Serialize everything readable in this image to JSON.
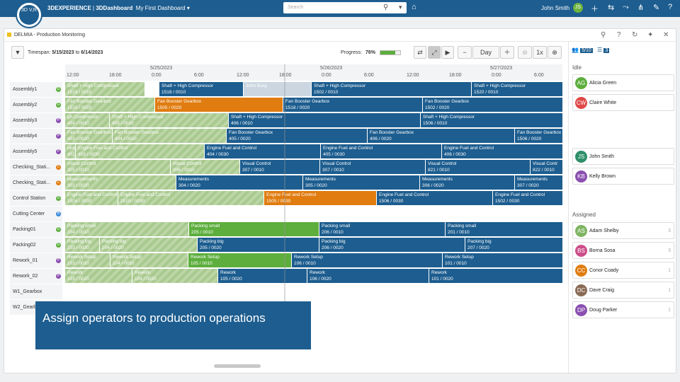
{
  "app": {
    "platform": "3DEXPERIENCE",
    "dashboard_label": "3DDashboard",
    "dashboard": "My First Dashboard",
    "search_placeholder": "Search",
    "user": "John Smith",
    "user_badge": "JS",
    "logo_text": "3D V,R"
  },
  "widget": {
    "title": "DELMIA - Production Monitoring",
    "timespan_label": "Timespan:",
    "from": "5/15/2023",
    "to_label": "to",
    "to": "6/14/2023",
    "progress_label": "Progress:",
    "progress_value": "76%",
    "progress_fraction": 0.76,
    "zoom_unit": "Day",
    "speed": "1x"
  },
  "axis": {
    "dates": [
      "5/25/2023",
      "5/26/2023",
      "5/27/2023"
    ],
    "hours": [
      "12:00",
      "18:00",
      "0:00",
      "6:00",
      "12:00",
      "18:00",
      "0:00",
      "6:00",
      "12:00",
      "18:00",
      "0:00",
      "6:00"
    ]
  },
  "rows": [
    {
      "name": "Assembly1",
      "badge": "G",
      "color": "#5dae3d"
    },
    {
      "name": "Assembly2",
      "badge": "G",
      "color": "#5dae3d"
    },
    {
      "name": "Assembly3",
      "badge": "P",
      "color": "#8a4fb0"
    },
    {
      "name": "Assembly4",
      "badge": "P",
      "color": "#8a4fb0"
    },
    {
      "name": "Assembly5",
      "badge": "P",
      "color": "#8a4fb0"
    },
    {
      "name": "Checking_Stati...",
      "badge": "C",
      "color": "#e07c10"
    },
    {
      "name": "Checking_Stati...",
      "badge": "C",
      "color": "#e07c10"
    },
    {
      "name": "Control Station",
      "badge": "G",
      "color": "#5dae3d"
    },
    {
      "name": "Cutting Center",
      "badge": "B",
      "color": "#3b8ad8"
    },
    {
      "name": "Packing01",
      "badge": "G",
      "color": "#5dae3d"
    },
    {
      "name": "Packing02",
      "badge": "G",
      "color": "#5dae3d"
    },
    {
      "name": "Rework_01",
      "badge": "P",
      "color": "#8a4fb0"
    },
    {
      "name": "Rework_02",
      "badge": "P",
      "color": "#8a4fb0"
    },
    {
      "name": "W1_Gearbox",
      "badge": "",
      "color": ""
    },
    {
      "name": "W2_Gearbox",
      "badge": "",
      "color": ""
    }
  ],
  "bars": [
    {
      "row": 0,
      "x": 0,
      "w": 112,
      "c": "done",
      "t": "Shaft + High Compressor",
      "n": "1519 / 0010"
    },
    {
      "row": 0,
      "x": 133,
      "w": 118,
      "c": "blue",
      "t": "Shaft + High Compressor",
      "n": "1518 / 0010"
    },
    {
      "row": 0,
      "x": 252,
      "w": 95,
      "c": "ghostbar",
      "t": "John Burg",
      "n": ""
    },
    {
      "row": 0,
      "x": 348,
      "w": 225,
      "c": "blue",
      "t": "Shaft + High Compressor",
      "n": "1502 / 0010"
    },
    {
      "row": 0,
      "x": 574,
      "w": 130,
      "c": "blue",
      "t": "Shaft + High Compressor",
      "n": "1520 / 0010"
    },
    {
      "row": 1,
      "x": 0,
      "w": 126,
      "c": "done",
      "t": "Fan Booster Gearbox",
      "n": "1519 / 0020"
    },
    {
      "row": 1,
      "x": 127,
      "w": 180,
      "c": "orange",
      "t": "Fan Booster Gearbox",
      "n": "1505 / 0020"
    },
    {
      "row": 1,
      "x": 308,
      "w": 196,
      "c": "blue",
      "t": "Fan Booster Gearbox",
      "n": "1518 / 0020"
    },
    {
      "row": 1,
      "x": 505,
      "w": 199,
      "c": "blue",
      "t": "Fan Booster Gearbox",
      "n": "1502 / 0020"
    },
    {
      "row": 2,
      "x": 0,
      "w": 62,
      "c": "done",
      "t": "gh Compressor",
      "n": "404 / 0010"
    },
    {
      "row": 2,
      "x": 63,
      "w": 167,
      "c": "done",
      "t": "Shaft + High Compressor",
      "n": "405 / 0010"
    },
    {
      "row": 2,
      "x": 231,
      "w": 270,
      "c": "blue",
      "t": "Shaft + High Compressor",
      "n": "406 / 0010"
    },
    {
      "row": 2,
      "x": 502,
      "w": 202,
      "c": "blue",
      "t": "Shaft + High Compressor",
      "n": "1506 / 0010"
    },
    {
      "row": 3,
      "x": 0,
      "w": 66,
      "c": "done",
      "t": "Fan Booster Gearbox",
      "n": "403 / 0020"
    },
    {
      "row": 3,
      "x": 67,
      "w": 160,
      "c": "done",
      "t": "Fan Booster Gearbox",
      "n": "404 / 0020"
    },
    {
      "row": 3,
      "x": 228,
      "w": 198,
      "c": "blue",
      "t": "Fan Booster Gearbox",
      "n": "405 / 0020"
    },
    {
      "row": 3,
      "x": 427,
      "w": 207,
      "c": "blue",
      "t": "Fan Booster Gearbox",
      "n": "406 / 0020"
    },
    {
      "row": 3,
      "x": 635,
      "w": 69,
      "c": "blue",
      "t": "Fan Booster Gearbox",
      "n": "1506 / 0020"
    },
    {
      "row": 4,
      "x": 0,
      "w": 14,
      "c": "done",
      "t": "Mot",
      "n": "402 / 0030"
    },
    {
      "row": 4,
      "x": 15,
      "w": 181,
      "c": "done",
      "t": "Engine Fuel and Control",
      "n": "403 / 0030"
    },
    {
      "row": 4,
      "x": 197,
      "w": 163,
      "c": "blue",
      "t": "Engine Fuel and Control",
      "n": "404 / 0030"
    },
    {
      "row": 4,
      "x": 361,
      "w": 170,
      "c": "blue",
      "t": "Engine Fuel and Control",
      "n": "405 / 0030"
    },
    {
      "row": 4,
      "x": 532,
      "w": 172,
      "c": "blue",
      "t": "Engine Fuel and Control",
      "n": "406 / 0030"
    },
    {
      "row": 5,
      "x": 0,
      "w": 148,
      "c": "done",
      "t": "Visual Control",
      "n": "305 / 0010"
    },
    {
      "row": 5,
      "x": 149,
      "w": 97,
      "c": "done",
      "t": "Visual Control",
      "n": "306 / 0010"
    },
    {
      "row": 5,
      "x": 247,
      "w": 112,
      "c": "blue",
      "t": "Visual Control",
      "n": "307 / 0010"
    },
    {
      "row": 5,
      "x": 360,
      "w": 148,
      "c": "blue",
      "t": "Visual Control",
      "n": "307 / 0010"
    },
    {
      "row": 5,
      "x": 509,
      "w": 147,
      "c": "blue",
      "t": "Visual Control",
      "n": "821 / 0010"
    },
    {
      "row": 5,
      "x": 657,
      "w": 47,
      "c": "blue",
      "t": "Visual Contr",
      "n": "822 / 0010"
    },
    {
      "row": 6,
      "x": 0,
      "w": 156,
      "c": "done",
      "t": "Measurements",
      "n": "303 / 0020"
    },
    {
      "row": 6,
      "x": 157,
      "w": 178,
      "c": "blue",
      "t": "Measurements",
      "n": "304 / 0020"
    },
    {
      "row": 6,
      "x": 336,
      "w": 164,
      "c": "blue",
      "t": "Measurements",
      "n": "305 / 0020"
    },
    {
      "row": 6,
      "x": 501,
      "w": 133,
      "c": "blue",
      "t": "Measurements",
      "n": "306 / 0020"
    },
    {
      "row": 6,
      "x": 635,
      "w": 69,
      "c": "blue",
      "t": "Measurements",
      "n": "307 / 0020"
    },
    {
      "row": 7,
      "x": 0,
      "w": 74,
      "c": "done",
      "t": "Engine Fuel and Control",
      "n": "1504 / 0030"
    },
    {
      "row": 7,
      "x": 75,
      "w": 205,
      "c": "done",
      "t": "Engine Fuel and Control",
      "n": "1519 / 0030"
    },
    {
      "row": 7,
      "x": 281,
      "w": 158,
      "c": "orange",
      "t": "Engine Fuel and Control",
      "n": "1505 / 0030"
    },
    {
      "row": 7,
      "x": 440,
      "w": 163,
      "c": "blue",
      "t": "Engine Fuel and Control",
      "n": "1506 / 0030"
    },
    {
      "row": 7,
      "x": 604,
      "w": 100,
      "c": "blue",
      "t": "Engine Fuel and Control",
      "n": "1502 / 0030"
    },
    {
      "row": 9,
      "x": 0,
      "w": 174,
      "c": "done",
      "t": "Packing small",
      "n": "204 / 0010"
    },
    {
      "row": 9,
      "x": 175,
      "w": 183,
      "c": "green",
      "t": "Packing small",
      "n": "205 / 0010"
    },
    {
      "row": 9,
      "x": 359,
      "w": 177,
      "c": "blue",
      "t": "Packing small",
      "n": "206 / 0010"
    },
    {
      "row": 9,
      "x": 537,
      "w": 167,
      "c": "blue",
      "t": "Packing small",
      "n": "201 / 0010"
    },
    {
      "row": 10,
      "x": 0,
      "w": 48,
      "c": "done",
      "t": "Packing big",
      "n": "203 / 0020"
    },
    {
      "row": 10,
      "x": 49,
      "w": 137,
      "c": "done",
      "t": "Packing big",
      "n": "204 / 0020"
    },
    {
      "row": 10,
      "x": 187,
      "w": 171,
      "c": "blue",
      "t": "Packing big",
      "n": "205 / 0020"
    },
    {
      "row": 10,
      "x": 359,
      "w": 205,
      "c": "blue",
      "t": "Packing big",
      "n": "206 / 0020"
    },
    {
      "row": 10,
      "x": 565,
      "w": 139,
      "c": "blue",
      "t": "Packing big",
      "n": "207 / 0020"
    },
    {
      "row": 11,
      "x": 0,
      "w": 63,
      "c": "done",
      "t": "Rework Setup",
      "n": "103 / 0010"
    },
    {
      "row": 11,
      "x": 64,
      "w": 109,
      "c": "done",
      "t": "Rework Setup",
      "n": "104 / 0010"
    },
    {
      "row": 11,
      "x": 174,
      "w": 145,
      "c": "green",
      "t": "Rework Setup",
      "n": "105 / 0010"
    },
    {
      "row": 11,
      "x": 320,
      "w": 212,
      "c": "blue",
      "t": "Rework Setup",
      "n": "106 / 0010"
    },
    {
      "row": 11,
      "x": 533,
      "w": 171,
      "c": "blue",
      "t": "Rework Setup",
      "n": "101 / 0010"
    },
    {
      "row": 12,
      "x": 0,
      "w": 94,
      "c": "done",
      "t": "Rework",
      "n": "103 / 0020"
    },
    {
      "row": 12,
      "x": 95,
      "w": 120,
      "c": "done",
      "t": "Rework",
      "n": "104 / 0020"
    },
    {
      "row": 12,
      "x": 216,
      "w": 125,
      "c": "blue",
      "t": "Rework",
      "n": "105 / 0020"
    },
    {
      "row": 12,
      "x": 342,
      "w": 171,
      "c": "blue",
      "t": "Rework",
      "n": "106 / 0020"
    },
    {
      "row": 12,
      "x": 514,
      "w": 190,
      "c": "blue",
      "t": "Rework",
      "n": "101 / 0020"
    }
  ],
  "caption": "Assign operators to production operations",
  "panel": {
    "count": "5/10",
    "list_count": "3",
    "idle_label": "Idle",
    "assigned_label": "Assigned"
  },
  "operators": [
    {
      "initials": "AG",
      "name": "Alicia Green",
      "color": "#5dae3d",
      "count": ""
    },
    {
      "initials": "CW",
      "name": "Claire White",
      "color": "#e04848",
      "count": ""
    },
    {
      "initials": "JS",
      "name": "John Smith",
      "color": "#2f8f6a",
      "count": ""
    },
    {
      "initials": "KB",
      "name": "Kelly Brown",
      "color": "#8a4fb0",
      "count": ""
    },
    {
      "initials": "AS",
      "name": "Adam Shelby",
      "color": "#7fb562",
      "count": "3"
    },
    {
      "initials": "BS",
      "name": "Borna Sosa",
      "color": "#cc4f8a",
      "count": "3"
    },
    {
      "initials": "CC",
      "name": "Conor Coady",
      "color": "#e07c10",
      "count": "1"
    },
    {
      "initials": "DC",
      "name": "Dave Craig",
      "color": "#8a6a55",
      "count": "1"
    },
    {
      "initials": "DP",
      "name": "Doug Parker",
      "color": "#8a4fb0",
      "count": "1"
    }
  ]
}
